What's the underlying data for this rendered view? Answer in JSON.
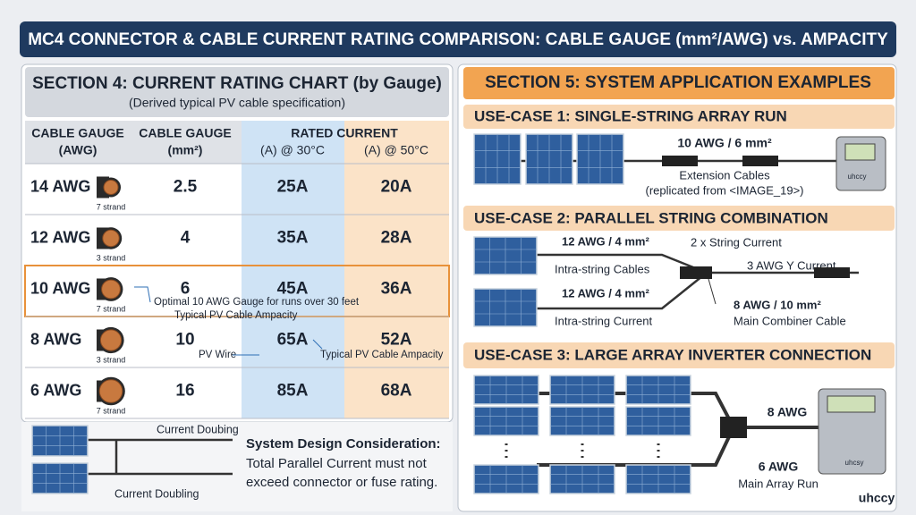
{
  "header": {
    "title": "MC4 CONNECTOR & CABLE CURRENT RATING COMPARISON: CABLE GAUGE (mm²/AWG) vs. AMPACITY"
  },
  "section4": {
    "title": "SECTION 4: CURRENT RATING CHART (by Gauge)",
    "subtitle": "(Derived typical PV cable specification)",
    "table": {
      "headers": [
        [
          "CABLE GAUGE",
          "(AWG)"
        ],
        [
          "CABLE GAUGE",
          "(mm²)"
        ],
        "RATED CURRENT",
        "(A) @ 30°C",
        "(A) @ 50°C"
      ],
      "rows": [
        [
          "14 AWG",
          "7 strand",
          "2.5",
          "25A",
          "20A"
        ],
        [
          "12 AWG",
          "3 strand",
          "4",
          "35A",
          "28A"
        ],
        [
          "10 AWG",
          "7 strand",
          "6",
          "45A",
          "36A"
        ],
        [
          "8 AWG",
          "3 strand",
          "10",
          "65A",
          "52A"
        ],
        [
          "6 AWG",
          "7 strand",
          "16",
          "85A",
          "68A"
        ]
      ]
    },
    "annotations": [
      "Optimal 10 AWG Gauge for runs over 30 feet",
      "Typical PV Cable Ampacity",
      "PV Wire",
      "Typical PV Cable Ampacity"
    ],
    "diagram": {
      "labels": [
        "Current Doubing",
        "Current Doubling"
      ],
      "note_title": "System Design Consideration:",
      "note_lines": [
        "Total Parallel Current must not",
        "exceed connector or fuse rating."
      ]
    }
  },
  "section5": {
    "title": "SECTION 5: SYSTEM APPLICATION EXAMPLES",
    "use_cases": [
      {
        "title": "USE-CASE 1: SINGLE-STRING ARRAY RUN",
        "labels": [
          "10 AWG / 6 mm²",
          "Extension Cables",
          "(replicated from <IMAGE_19>)",
          "uhccy"
        ]
      },
      {
        "title": "USE-CASE 2: PARALLEL STRING COMBINATION",
        "labels": [
          "12 AWG / 4 mm²",
          "Intra-string Cables",
          "12 AWG / 4 mm²",
          "Intra-string Current",
          "2 x String Current",
          "3 AWG Y Current",
          "8 AWG / 10 mm²",
          "Main Combiner Cable"
        ]
      },
      {
        "title": "USE-CASE 3: LARGE ARRAY INVERTER CONNECTION",
        "labels": [
          "8 AWG",
          "6 AWG",
          "Main Array Run",
          "uhcsy"
        ]
      }
    ]
  },
  "logo": "uhccy"
}
